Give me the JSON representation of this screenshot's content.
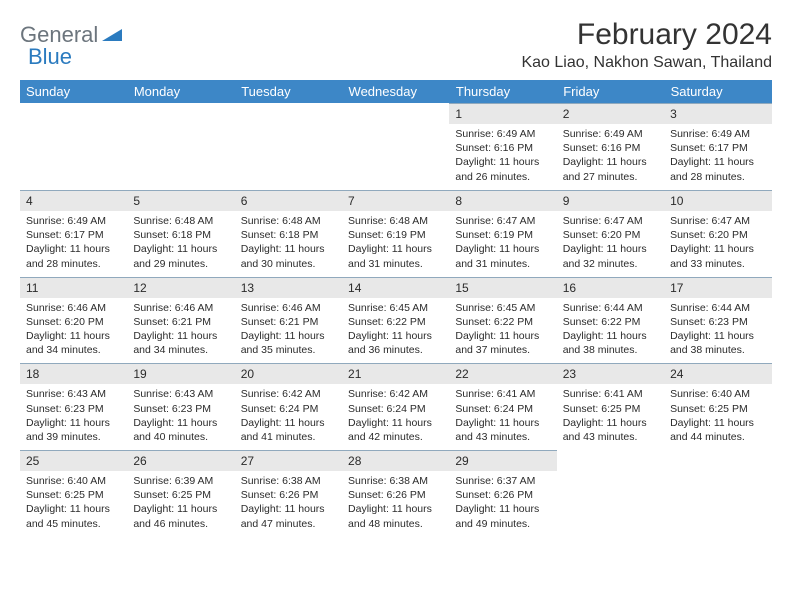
{
  "logo": {
    "grey": "General",
    "blue": "Blue"
  },
  "title": "February 2024",
  "location": "Kao Liao, Nakhon Sawan, Thailand",
  "header_bg": "#3d87c7",
  "daynum_bg": "#e8e8e8",
  "daynum_border": "#90a9bd",
  "weekdays": [
    "Sunday",
    "Monday",
    "Tuesday",
    "Wednesday",
    "Thursday",
    "Friday",
    "Saturday"
  ],
  "startOffset": 4,
  "days": [
    {
      "n": 1,
      "sr": "6:49 AM",
      "ss": "6:16 PM",
      "dl": "11 hours and 26 minutes."
    },
    {
      "n": 2,
      "sr": "6:49 AM",
      "ss": "6:16 PM",
      "dl": "11 hours and 27 minutes."
    },
    {
      "n": 3,
      "sr": "6:49 AM",
      "ss": "6:17 PM",
      "dl": "11 hours and 28 minutes."
    },
    {
      "n": 4,
      "sr": "6:49 AM",
      "ss": "6:17 PM",
      "dl": "11 hours and 28 minutes."
    },
    {
      "n": 5,
      "sr": "6:48 AM",
      "ss": "6:18 PM",
      "dl": "11 hours and 29 minutes."
    },
    {
      "n": 6,
      "sr": "6:48 AM",
      "ss": "6:18 PM",
      "dl": "11 hours and 30 minutes."
    },
    {
      "n": 7,
      "sr": "6:48 AM",
      "ss": "6:19 PM",
      "dl": "11 hours and 31 minutes."
    },
    {
      "n": 8,
      "sr": "6:47 AM",
      "ss": "6:19 PM",
      "dl": "11 hours and 31 minutes."
    },
    {
      "n": 9,
      "sr": "6:47 AM",
      "ss": "6:20 PM",
      "dl": "11 hours and 32 minutes."
    },
    {
      "n": 10,
      "sr": "6:47 AM",
      "ss": "6:20 PM",
      "dl": "11 hours and 33 minutes."
    },
    {
      "n": 11,
      "sr": "6:46 AM",
      "ss": "6:20 PM",
      "dl": "11 hours and 34 minutes."
    },
    {
      "n": 12,
      "sr": "6:46 AM",
      "ss": "6:21 PM",
      "dl": "11 hours and 34 minutes."
    },
    {
      "n": 13,
      "sr": "6:46 AM",
      "ss": "6:21 PM",
      "dl": "11 hours and 35 minutes."
    },
    {
      "n": 14,
      "sr": "6:45 AM",
      "ss": "6:22 PM",
      "dl": "11 hours and 36 minutes."
    },
    {
      "n": 15,
      "sr": "6:45 AM",
      "ss": "6:22 PM",
      "dl": "11 hours and 37 minutes."
    },
    {
      "n": 16,
      "sr": "6:44 AM",
      "ss": "6:22 PM",
      "dl": "11 hours and 38 minutes."
    },
    {
      "n": 17,
      "sr": "6:44 AM",
      "ss": "6:23 PM",
      "dl": "11 hours and 38 minutes."
    },
    {
      "n": 18,
      "sr": "6:43 AM",
      "ss": "6:23 PM",
      "dl": "11 hours and 39 minutes."
    },
    {
      "n": 19,
      "sr": "6:43 AM",
      "ss": "6:23 PM",
      "dl": "11 hours and 40 minutes."
    },
    {
      "n": 20,
      "sr": "6:42 AM",
      "ss": "6:24 PM",
      "dl": "11 hours and 41 minutes."
    },
    {
      "n": 21,
      "sr": "6:42 AM",
      "ss": "6:24 PM",
      "dl": "11 hours and 42 minutes."
    },
    {
      "n": 22,
      "sr": "6:41 AM",
      "ss": "6:24 PM",
      "dl": "11 hours and 43 minutes."
    },
    {
      "n": 23,
      "sr": "6:41 AM",
      "ss": "6:25 PM",
      "dl": "11 hours and 43 minutes."
    },
    {
      "n": 24,
      "sr": "6:40 AM",
      "ss": "6:25 PM",
      "dl": "11 hours and 44 minutes."
    },
    {
      "n": 25,
      "sr": "6:40 AM",
      "ss": "6:25 PM",
      "dl": "11 hours and 45 minutes."
    },
    {
      "n": 26,
      "sr": "6:39 AM",
      "ss": "6:25 PM",
      "dl": "11 hours and 46 minutes."
    },
    {
      "n": 27,
      "sr": "6:38 AM",
      "ss": "6:26 PM",
      "dl": "11 hours and 47 minutes."
    },
    {
      "n": 28,
      "sr": "6:38 AM",
      "ss": "6:26 PM",
      "dl": "11 hours and 48 minutes."
    },
    {
      "n": 29,
      "sr": "6:37 AM",
      "ss": "6:26 PM",
      "dl": "11 hours and 49 minutes."
    }
  ],
  "labels": {
    "sunrise": "Sunrise: ",
    "sunset": "Sunset: ",
    "daylight": "Daylight: "
  }
}
